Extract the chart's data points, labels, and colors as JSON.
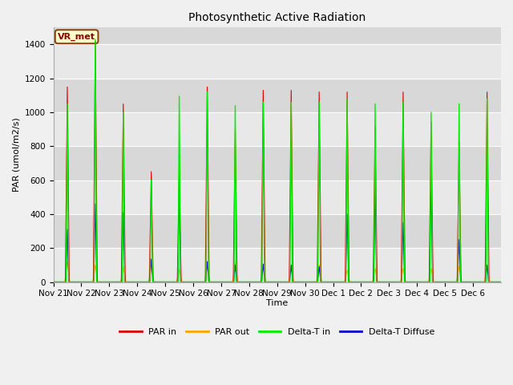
{
  "title": "Photosynthetic Active Radiation",
  "ylabel": "PAR (umol/m2/s)",
  "xlabel": "Time",
  "annotation": "VR_met",
  "ylim": [
    0,
    1500
  ],
  "background_color": "#f0f0f0",
  "plot_bg_color": "#e8e8e8",
  "series": {
    "par_in_color": "#dd0000",
    "par_out_color": "#ffa500",
    "delta_t_in_color": "#00ee00",
    "delta_t_diffuse_color": "#0000cc"
  },
  "x_tick_labels": [
    "Nov 21",
    "Nov 22",
    "Nov 23",
    "Nov 24",
    "Nov 25",
    "Nov 26",
    "Nov 27",
    "Nov 28",
    "Nov 29",
    "Nov 30",
    "Dec 1",
    "Dec 2",
    "Dec 3",
    "Dec 4",
    "Dec 5",
    "Dec 6"
  ],
  "num_days": 16,
  "peaks_par_in": [
    1150,
    1420,
    1050,
    650,
    640,
    1150,
    900,
    1130,
    1130,
    1120,
    1120,
    910,
    1120,
    940,
    820,
    1120
  ],
  "peaks_par_out": [
    120,
    100,
    90,
    90,
    75,
    105,
    120,
    100,
    85,
    100,
    70,
    80,
    80,
    80,
    90,
    95
  ],
  "peaks_delta_t_in": [
    1050,
    1430,
    1000,
    600,
    1095,
    1120,
    1040,
    1060,
    1060,
    1060,
    1080,
    1050,
    1060,
    1000,
    1050,
    1080
  ],
  "peaks_delta_t_diffuse": [
    310,
    460,
    410,
    135,
    515,
    120,
    100,
    105,
    100,
    90,
    400,
    560,
    350,
    635,
    250,
    100
  ],
  "grid_band_colors": [
    "#e8e8e8",
    "#d8d8d8"
  ],
  "grid_line_color": "#ffffff"
}
